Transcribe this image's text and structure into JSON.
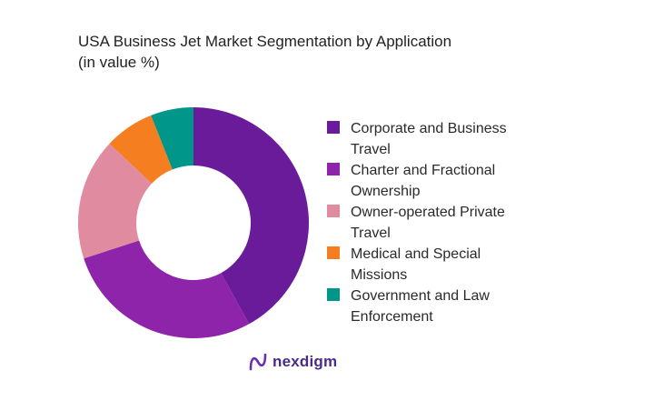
{
  "chart_data": {
    "type": "pie",
    "variant": "donut",
    "title_line1": "USA Business Jet Market Segmentation by Application",
    "title_line2": "(in value %)",
    "legend_position": "right",
    "categories": [
      "Corporate and Business Travel",
      "Charter and Fractional Ownership",
      "Owner-operated Private Travel",
      "Medical and Special Missions",
      "Government and Law Enforcement"
    ],
    "values": [
      42,
      28,
      17,
      7,
      6
    ],
    "colors": [
      "#6a1b9a",
      "#8e24aa",
      "#e08ba0",
      "#f57f20",
      "#00968a"
    ],
    "legend_lines": [
      [
        "Corporate and Business",
        "Travel"
      ],
      [
        "Charter and Fractional",
        "Ownership"
      ],
      [
        "Owner-operated Private",
        "Travel"
      ],
      [
        "Medical and Special",
        "Missions"
      ],
      [
        "Government and Law",
        "Enforcement"
      ]
    ]
  },
  "logo": {
    "text": "nexdigm",
    "color": "#4a2a8a"
  }
}
